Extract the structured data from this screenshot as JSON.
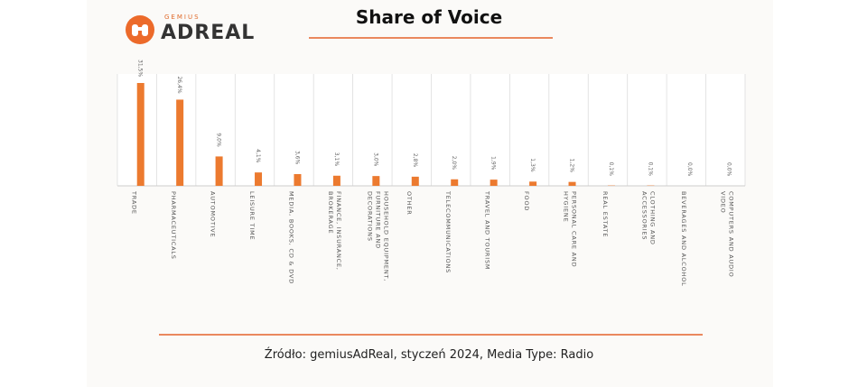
{
  "logo": {
    "brand_small": "GEMIUS",
    "brand": "ADREAL"
  },
  "chart_data": {
    "type": "bar",
    "title": "Share of Voice",
    "categories": [
      "TRADE",
      "PHARMACEUTICALS",
      "AUTOMOTIVE",
      "LEISURE TIME",
      "MEDIA, BOOKS, CD & DVD",
      "FINANCE, INSURANCE, BROKERAGE",
      "HOUSEHOLD EQUIPMENT, FURNITURE AND DECORATIONS",
      "OTHER",
      "TELECOMMUNICATIONS",
      "TRAVEL AND TOURISM",
      "FOOD",
      "PERSONAL CARE AND HYGIENE",
      "REAL ESTATE",
      "CLOTHING AND ACCESSORIES",
      "BEVERAGES AND ALCOHOL",
      "COMPUTERS AND AUDIO VIDEO"
    ],
    "values": [
      31.5,
      26.4,
      9.0,
      4.1,
      3.6,
      3.1,
      3.0,
      2.8,
      2.0,
      1.9,
      1.3,
      1.2,
      0.1,
      0.1,
      0.0,
      0.0
    ],
    "value_labels": [
      "31,5%",
      "26,4%",
      "9,0%",
      "4,1%",
      "3,6%",
      "3,1%",
      "3,0%",
      "2,8%",
      "2,0%",
      "1,9%",
      "1,3%",
      "1,2%",
      "0,1%",
      "0,1%",
      "0,0%",
      "0,0%"
    ],
    "color": "#ec7a2f"
  },
  "footer": {
    "source": "Źródło: gemiusAdReal, styczeń 2024, Media Type: Radio"
  }
}
